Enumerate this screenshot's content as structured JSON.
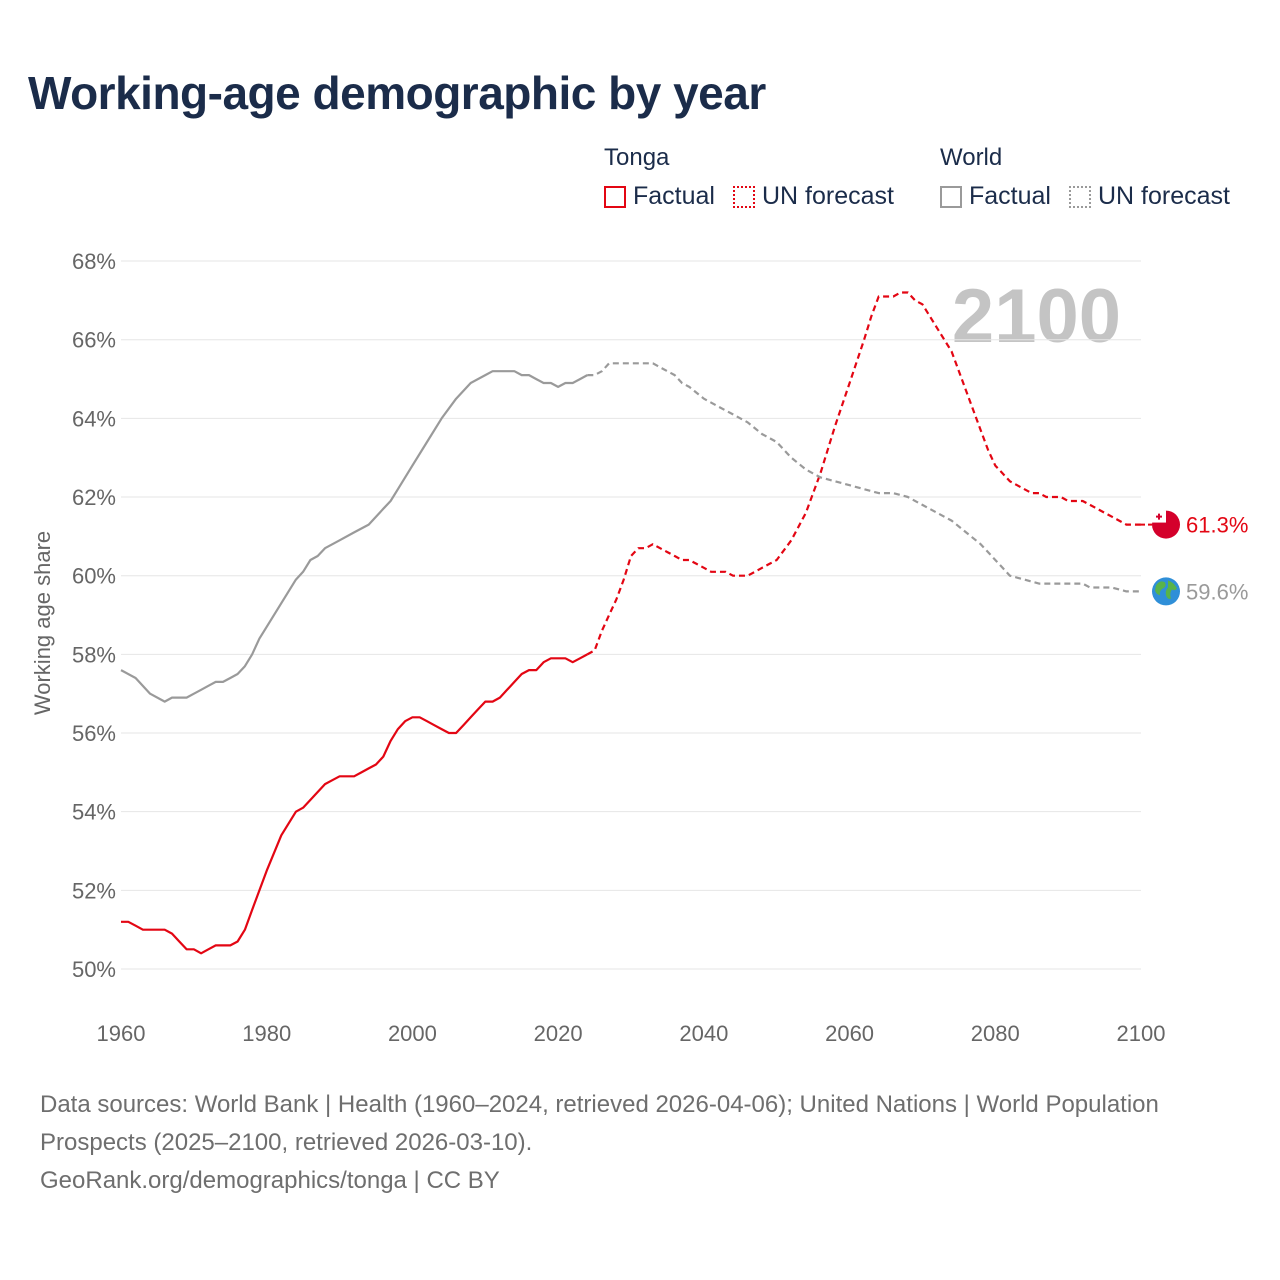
{
  "title": "Working-age demographic by year",
  "legend": {
    "groups": [
      {
        "name": "Tonga",
        "factual_label": "Factual",
        "forecast_label": "UN forecast"
      },
      {
        "name": "World",
        "factual_label": "Factual",
        "forecast_label": "UN forecast"
      }
    ]
  },
  "colors": {
    "tonga": "#e30613",
    "world": "#9a9a9a",
    "grid": "#e6e6e6",
    "year_watermark": "#c4c4c4",
    "axis_text": "#666666",
    "title": "#1b2c4a"
  },
  "icons": {
    "tonga_marker": "tonga-flag-icon",
    "world_marker": "globe-icon"
  },
  "chart_data": {
    "type": "line",
    "title": "Working-age demographic by year",
    "xlabel": "",
    "ylabel": "Working age share",
    "xlim": [
      1960,
      2100
    ],
    "ylim": [
      49,
      68
    ],
    "xticks": [
      1960,
      1980,
      2000,
      2020,
      2040,
      2060,
      2080,
      2100
    ],
    "xtick_labels": [
      "1960",
      "1980",
      "2000",
      "2020",
      "2040",
      "2060",
      "2080",
      "2100"
    ],
    "yticks": [
      50,
      52,
      54,
      56,
      58,
      60,
      62,
      64,
      66,
      68
    ],
    "ytick_labels": [
      "50%",
      "52%",
      "54%",
      "56%",
      "58%",
      "60%",
      "62%",
      "64%",
      "66%",
      "68%"
    ],
    "watermark_year": "2100",
    "grid": true,
    "legend_position": "top-right",
    "series": [
      {
        "name": "Tonga",
        "kind": "Factual",
        "color": "#e30613",
        "style": "solid",
        "x": [
          1960,
          1961,
          1962,
          1963,
          1964,
          1965,
          1966,
          1967,
          1968,
          1969,
          1970,
          1971,
          1972,
          1973,
          1974,
          1975,
          1976,
          1977,
          1978,
          1980,
          1982,
          1984,
          1985,
          1986,
          1987,
          1988,
          1989,
          1990,
          1991,
          1992,
          1993,
          1994,
          1995,
          1996,
          1997,
          1998,
          1999,
          2000,
          2001,
          2002,
          2003,
          2004,
          2005,
          2006,
          2007,
          2008,
          2009,
          2010,
          2011,
          2012,
          2013,
          2014,
          2015,
          2016,
          2017,
          2018,
          2019,
          2020,
          2021,
          2022,
          2023,
          2024
        ],
        "y": [
          51.2,
          51.2,
          51.1,
          51.0,
          51.0,
          51.0,
          51.0,
          50.9,
          50.7,
          50.5,
          50.5,
          50.4,
          50.5,
          50.6,
          50.6,
          50.6,
          50.7,
          51.0,
          51.5,
          52.5,
          53.4,
          54.0,
          54.1,
          54.3,
          54.5,
          54.7,
          54.8,
          54.9,
          54.9,
          54.9,
          55.0,
          55.1,
          55.2,
          55.4,
          55.8,
          56.1,
          56.3,
          56.4,
          56.4,
          56.3,
          56.2,
          56.1,
          56.0,
          56.0,
          56.2,
          56.4,
          56.6,
          56.8,
          56.8,
          56.9,
          57.1,
          57.3,
          57.5,
          57.6,
          57.6,
          57.8,
          57.9,
          57.9,
          57.9,
          57.8,
          57.9,
          58.0
        ]
      },
      {
        "name": "Tonga",
        "kind": "UN forecast",
        "color": "#e30613",
        "style": "dashed",
        "x": [
          2024,
          2025,
          2026,
          2027,
          2028,
          2029,
          2030,
          2031,
          2032,
          2033,
          2034,
          2035,
          2036,
          2037,
          2038,
          2039,
          2040,
          2041,
          2042,
          2043,
          2044,
          2045,
          2046,
          2047,
          2048,
          2049,
          2050,
          2052,
          2054,
          2056,
          2058,
          2060,
          2062,
          2063,
          2064,
          2065,
          2066,
          2067,
          2068,
          2069,
          2070,
          2071,
          2072,
          2073,
          2074,
          2075,
          2076,
          2077,
          2078,
          2079,
          2080,
          2081,
          2082,
          2083,
          2084,
          2085,
          2086,
          2087,
          2088,
          2089,
          2090,
          2091,
          2092,
          2093,
          2094,
          2095,
          2096,
          2097,
          2098,
          2099,
          2100
        ],
        "y": [
          58.0,
          58.1,
          58.6,
          59.0,
          59.4,
          59.9,
          60.5,
          60.7,
          60.7,
          60.8,
          60.7,
          60.6,
          60.5,
          60.4,
          60.4,
          60.3,
          60.2,
          60.1,
          60.1,
          60.1,
          60.0,
          60.0,
          60.0,
          60.1,
          60.2,
          60.3,
          60.4,
          60.9,
          61.6,
          62.6,
          63.8,
          64.9,
          66.0,
          66.6,
          67.1,
          67.1,
          67.1,
          67.2,
          67.2,
          67.0,
          66.9,
          66.6,
          66.3,
          66.0,
          65.7,
          65.2,
          64.7,
          64.2,
          63.7,
          63.2,
          62.8,
          62.6,
          62.4,
          62.3,
          62.2,
          62.1,
          62.1,
          62.0,
          62.0,
          62.0,
          61.9,
          61.9,
          61.9,
          61.8,
          61.7,
          61.6,
          61.5,
          61.4,
          61.3,
          61.3,
          61.3
        ]
      },
      {
        "name": "World",
        "kind": "Factual",
        "color": "#9a9a9a",
        "style": "solid",
        "x": [
          1960,
          1962,
          1964,
          1966,
          1967,
          1968,
          1969,
          1970,
          1971,
          1972,
          1973,
          1974,
          1975,
          1976,
          1977,
          1978,
          1979,
          1980,
          1982,
          1984,
          1985,
          1986,
          1987,
          1988,
          1990,
          1992,
          1994,
          1996,
          1997,
          1998,
          2000,
          2002,
          2004,
          2006,
          2008,
          2010,
          2011,
          2012,
          2013,
          2014,
          2015,
          2016,
          2017,
          2018,
          2019,
          2020,
          2021,
          2022,
          2023,
          2024
        ],
        "y": [
          57.6,
          57.4,
          57.0,
          56.8,
          56.9,
          56.9,
          56.9,
          57.0,
          57.1,
          57.2,
          57.3,
          57.3,
          57.4,
          57.5,
          57.7,
          58.0,
          58.4,
          58.7,
          59.3,
          59.9,
          60.1,
          60.4,
          60.5,
          60.7,
          60.9,
          61.1,
          61.3,
          61.7,
          61.9,
          62.2,
          62.8,
          63.4,
          64.0,
          64.5,
          64.9,
          65.1,
          65.2,
          65.2,
          65.2,
          65.2,
          65.1,
          65.1,
          65.0,
          64.9,
          64.9,
          64.8,
          64.9,
          64.9,
          65.0,
          65.1
        ]
      },
      {
        "name": "World",
        "kind": "UN forecast",
        "color": "#9a9a9a",
        "style": "dashed",
        "x": [
          2024,
          2025,
          2026,
          2027,
          2028,
          2030,
          2032,
          2033,
          2034,
          2036,
          2037,
          2038,
          2040,
          2042,
          2044,
          2046,
          2048,
          2050,
          2052,
          2054,
          2056,
          2058,
          2060,
          2062,
          2064,
          2066,
          2068,
          2070,
          2072,
          2074,
          2076,
          2078,
          2080,
          2081,
          2082,
          2084,
          2086,
          2088,
          2090,
          2092,
          2093,
          2094,
          2096,
          2098,
          2099,
          2100
        ],
        "y": [
          65.1,
          65.1,
          65.2,
          65.4,
          65.4,
          65.4,
          65.4,
          65.4,
          65.3,
          65.1,
          64.9,
          64.8,
          64.5,
          64.3,
          64.1,
          63.9,
          63.6,
          63.4,
          63.0,
          62.7,
          62.5,
          62.4,
          62.3,
          62.2,
          62.1,
          62.1,
          62.0,
          61.8,
          61.6,
          61.4,
          61.1,
          60.8,
          60.4,
          60.2,
          60.0,
          59.9,
          59.8,
          59.8,
          59.8,
          59.8,
          59.7,
          59.7,
          59.7,
          59.6,
          59.6,
          59.6
        ]
      }
    ],
    "end_labels": [
      {
        "series": "Tonga",
        "year": 2100,
        "value": 61.3,
        "text": "61.3%"
      },
      {
        "series": "World",
        "year": 2100,
        "value": 59.6,
        "text": "59.6%"
      }
    ]
  },
  "sources": {
    "line1": "Data sources: World Bank | Health (1960–2024, retrieved 2026-04-06); United Nations | World Population Prospects (2025–2100, retrieved 2026-03-10).",
    "line2": "GeoRank.org/demographics/tonga | CC BY"
  }
}
